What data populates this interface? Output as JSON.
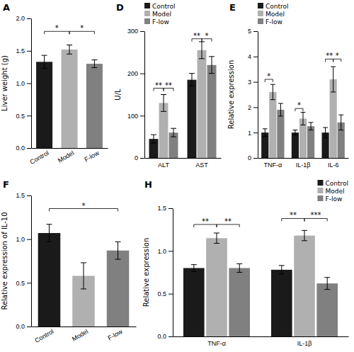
{
  "chart_data": [
    {
      "type": "bar",
      "title": "A",
      "categories": [
        "Control",
        "Model",
        "F-low"
      ],
      "values": [
        1.33,
        1.52,
        1.3
      ],
      "errors": [
        0.1,
        0.07,
        0.06
      ],
      "colors": [
        "#1a1a1a",
        "#b0b0b0",
        "#808080"
      ],
      "ylabel": "Liver weight (g)",
      "ylim": [
        0.0,
        2.0
      ],
      "yticks": [
        {
          "value": 0.0,
          "label": "0.0"
        },
        0.5,
        {
          "value": 1.0,
          "label": "1.0"
        },
        1.5,
        {
          "value": 2.0,
          "label": "2.0"
        }
      ],
      "grid": false,
      "annotations": [
        {
          "text": "*",
          "from": "Control",
          "to": "Model",
          "y": 1.8
        },
        {
          "text": "*",
          "from": "Model",
          "to": "F-low",
          "y": 1.8
        }
      ]
    },
    {
      "type": "bar",
      "title": "D",
      "categories": [
        "ALT",
        "AST"
      ],
      "series": [
        {
          "name": "Control",
          "color": "#1a1a1a",
          "values": [
            45,
            185
          ],
          "errors": [
            10,
            15
          ]
        },
        {
          "name": "Model",
          "color": "#b0b0b0",
          "values": [
            130,
            255
          ],
          "errors": [
            20,
            20
          ]
        },
        {
          "name": "F-low",
          "color": "#808080",
          "values": [
            60,
            220
          ],
          "errors": [
            10,
            20
          ]
        }
      ],
      "ylabel": "U/L",
      "ylim": [
        0,
        300
      ],
      "yticks": [
        0,
        100,
        200,
        300
      ],
      "legend": "upper left",
      "grid": false,
      "annotations": [
        {
          "text": "**",
          "group": "ALT",
          "from": "Control",
          "to": "Model",
          "y": 165
        },
        {
          "text": "**",
          "group": "ALT",
          "from": "Model",
          "to": "F-low",
          "y": 165
        },
        {
          "text": "**",
          "group": "AST",
          "from": "Control",
          "to": "Model",
          "y": 282
        },
        {
          "text": "*",
          "group": "AST",
          "from": "Model",
          "to": "F-low",
          "y": 282
        }
      ]
    },
    {
      "type": "bar",
      "title": "E",
      "categories": [
        "TNF-α",
        "IL-1β",
        "IL-6"
      ],
      "series": [
        {
          "name": "Control",
          "color": "#1a1a1a",
          "values": [
            1.0,
            1.0,
            1.0
          ],
          "errors": [
            0.15,
            0.1,
            0.2
          ]
        },
        {
          "name": "Model",
          "color": "#b0b0b0",
          "values": [
            2.6,
            1.55,
            3.1
          ],
          "errors": [
            0.3,
            0.25,
            0.5
          ]
        },
        {
          "name": "F-low",
          "color": "#808080",
          "values": [
            1.9,
            1.25,
            1.4
          ],
          "errors": [
            0.25,
            0.15,
            0.3
          ]
        }
      ],
      "ylabel": "Relative expression",
      "ylim": [
        0,
        5
      ],
      "yticks": [
        0,
        1,
        2,
        3,
        4,
        5
      ],
      "legend": "upper left",
      "grid": false,
      "annotations": [
        {
          "text": "*",
          "group": "TNF-α",
          "from": "Control",
          "to": "Model",
          "y": 3.1
        },
        {
          "text": "*",
          "group": "IL-1β",
          "from": "Control",
          "to": "Model",
          "y": 1.95
        },
        {
          "text": "**",
          "group": "IL-6",
          "from": "Control",
          "to": "Model",
          "y": 3.9
        },
        {
          "text": "*",
          "group": "IL-6",
          "from": "Model",
          "to": "F-low",
          "y": 3.9
        }
      ]
    },
    {
      "type": "bar",
      "title": "F",
      "categories": [
        "Control",
        "Model",
        "F-low"
      ],
      "values": [
        1.07,
        0.58,
        0.87
      ],
      "errors": [
        0.1,
        0.15,
        0.1
      ],
      "colors": [
        "#1a1a1a",
        "#b0b0b0",
        "#808080"
      ],
      "ylabel": "Relative expression of IL-10",
      "ylim": [
        0.0,
        1.5
      ],
      "yticks": [
        {
          "value": 0.0,
          "label": "0.0"
        },
        0.5,
        {
          "value": 1.0,
          "label": "1.0"
        },
        1.5
      ],
      "grid": false,
      "annotations": [
        {
          "text": "*",
          "from": "Control",
          "to": "F-low",
          "y": 1.35
        }
      ]
    },
    {
      "type": "bar",
      "title": "H",
      "categories": [
        "TNF-α",
        "IL-1β"
      ],
      "series": [
        {
          "name": "Control",
          "color": "#1a1a1a",
          "values": [
            0.8,
            0.78
          ],
          "errors": [
            0.04,
            0.05
          ]
        },
        {
          "name": "Model",
          "color": "#b0b0b0",
          "values": [
            1.15,
            1.18
          ],
          "errors": [
            0.06,
            0.06
          ]
        },
        {
          "name": "F-low",
          "color": "#808080",
          "values": [
            0.8,
            0.62
          ],
          "errors": [
            0.05,
            0.07
          ]
        }
      ],
      "ylabel": "Relative expression",
      "ylim": [
        0.0,
        1.5
      ],
      "yticks": [
        {
          "value": 0.0,
          "label": "0.0"
        },
        0.5,
        {
          "value": 1.0,
          "label": "1.0"
        },
        1.5
      ],
      "legend": "upper right",
      "grid": false,
      "annotations": [
        {
          "text": "**",
          "group": "TNF-α",
          "from": "Control",
          "to": "Model",
          "y": 1.31
        },
        {
          "text": "**",
          "group": "TNF-α",
          "from": "Model",
          "to": "F-low",
          "y": 1.31
        },
        {
          "text": "**",
          "group": "IL-1β",
          "from": "Control",
          "to": "Model",
          "y": 1.38
        },
        {
          "text": "***",
          "group": "IL-1β",
          "from": "Model",
          "to": "F-low",
          "y": 1.38
        }
      ]
    }
  ]
}
